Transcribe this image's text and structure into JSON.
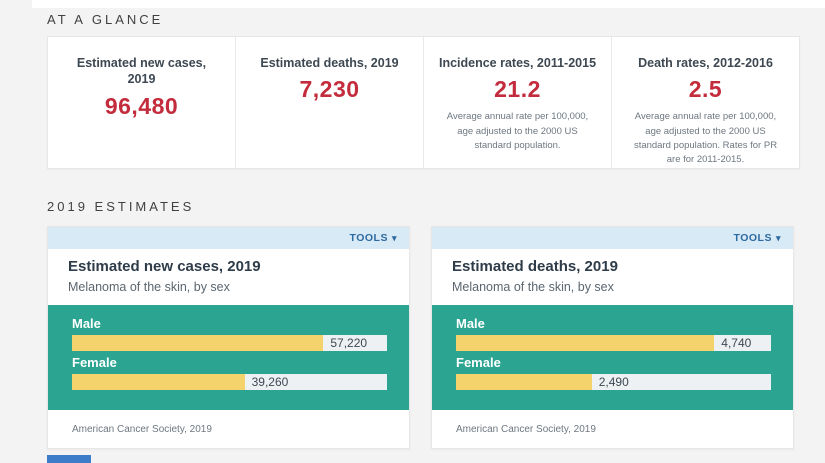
{
  "at_a_glance": {
    "section_title": "AT A GLANCE",
    "cards": [
      {
        "title": "Estimated new cases, 2019",
        "value": "96,480",
        "description": ""
      },
      {
        "title": "Estimated deaths, 2019",
        "value": "7,230",
        "description": ""
      },
      {
        "title": "Incidence rates, 2011-2015",
        "value": "21.2",
        "description": "Average annual rate per 100,000, age adjusted to the 2000 US standard population."
      },
      {
        "title": "Death rates, 2012-2016",
        "value": "2.5",
        "description": "Average annual rate per 100,000, age adjusted to the 2000 US standard population. Rates for PR are for 2011-2015."
      }
    ]
  },
  "estimates": {
    "section_title": "2019 ESTIMATES",
    "tools_label": "TOOLS",
    "tools_caret": "▾"
  },
  "chart_data": [
    {
      "type": "bar",
      "orientation": "horizontal",
      "title": "Estimated new cases, 2019",
      "subtitle": "Melanoma of the skin, by sex",
      "categories": [
        "Male",
        "Female"
      ],
      "values": [
        57220,
        39260
      ],
      "value_labels": [
        "57,220",
        "39,260"
      ],
      "xlim": [
        0,
        71700
      ],
      "grid": false,
      "legend": "none",
      "source": "American Cancer Society, 2019"
    },
    {
      "type": "bar",
      "orientation": "horizontal",
      "title": "Estimated deaths, 2019",
      "subtitle": "Melanoma of the skin, by sex",
      "categories": [
        "Male",
        "Female"
      ],
      "values": [
        4740,
        2490
      ],
      "value_labels": [
        "4,740",
        "2,490"
      ],
      "xlim": [
        0,
        5780
      ],
      "grid": false,
      "legend": "none",
      "source": "American Cancer Society, 2019"
    }
  ],
  "colors": {
    "accent_red": "#c32c3c",
    "teal": "#2ba592",
    "bar_yellow": "#f5d36c",
    "tools_bg": "#d9eaf7",
    "tools_text": "#2d6a9f"
  }
}
